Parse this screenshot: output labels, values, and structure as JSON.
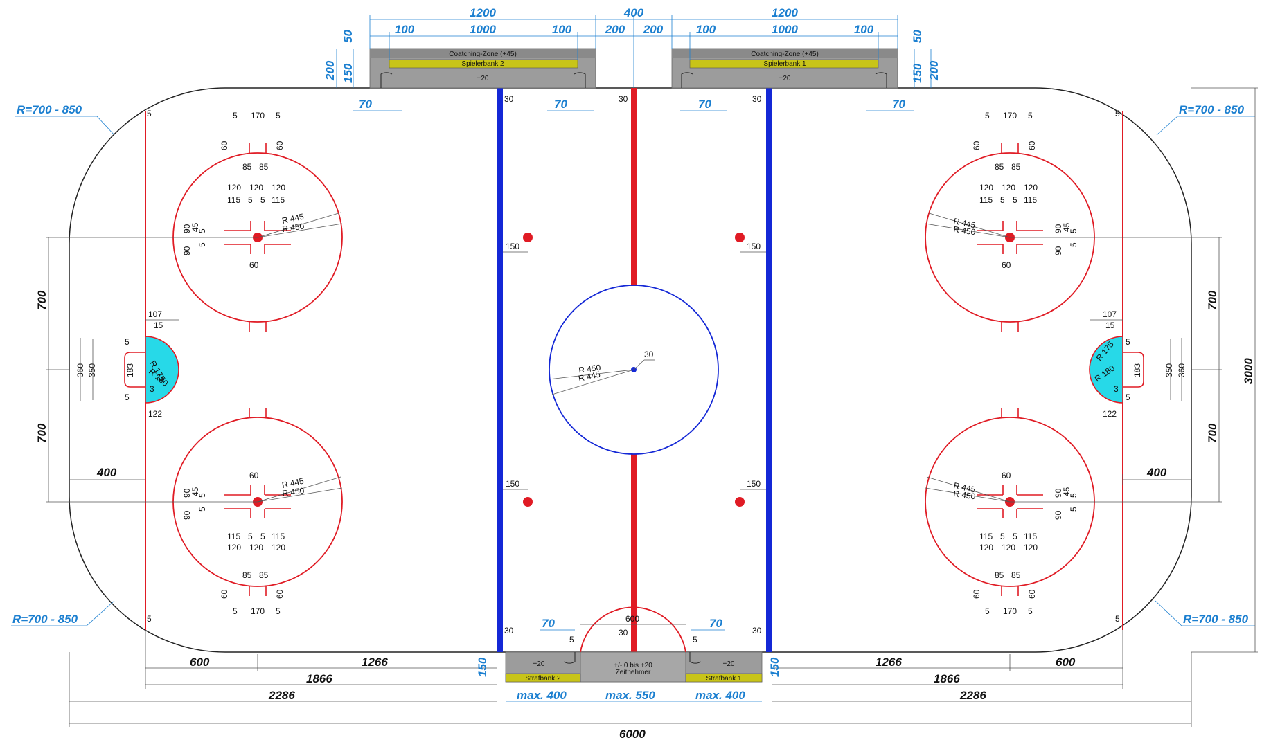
{
  "top": {
    "left_group": "1200",
    "center_group": "400",
    "right_group": "1200",
    "left_100a": "100",
    "left_1000": "1000",
    "left_100b": "100",
    "mid_200a": "200",
    "mid_200b": "200",
    "right_100a": "100",
    "right_1000": "1000",
    "right_100b": "100",
    "h50": "50",
    "h150": "150",
    "h200": "200",
    "d70": "70"
  },
  "benches_top": {
    "left": {
      "zone": "Coatching-Zone (+45)",
      "bank": "Spielerbank 2",
      "plus": "+20"
    },
    "right": {
      "zone": "Coatching-Zone (+45)",
      "bank": "Spielerbank 1",
      "plus": "+20"
    }
  },
  "benches_bottom": {
    "left": {
      "plus": "+20",
      "bank": "Strafbank 2"
    },
    "center": {
      "plus": "+/- 0 bis +20",
      "label": "Zeitnehmer"
    },
    "right": {
      "plus": "+20",
      "bank": "Strafbank 1"
    }
  },
  "corner_radius": "R=700 - 850",
  "side": {
    "d700": "700",
    "d400": "400",
    "total_width": "3000"
  },
  "bottom": {
    "d600": "600",
    "d1266": "1266",
    "d1866": "1866",
    "d2286": "2286",
    "d150": "150",
    "max400": "max. 400",
    "max550": "max. 550",
    "total_length": "6000",
    "d70": "70",
    "d600c": "600",
    "d30": "30"
  },
  "lines": {
    "d30": "30",
    "d5": "5",
    "d150": "150"
  },
  "faceoff": {
    "d5": "5",
    "d170": "170",
    "d60": "60",
    "d85": "85",
    "d120": "120",
    "d115": "115",
    "d90": "90",
    "d45": "45",
    "r445": "R 445",
    "r450": "R 450"
  },
  "goal": {
    "d107": "107",
    "d15": "15",
    "d5": "5",
    "d360": "360",
    "d350": "350",
    "d183": "183",
    "d3": "3",
    "d122": "122",
    "r175": "R 175",
    "r180": "R 180"
  },
  "center": {
    "r450": "R 450",
    "r445": "R 445",
    "d30": "30"
  },
  "colors": {
    "red": "#e01b24",
    "blue": "#1428d6",
    "crease": "#27d9e8",
    "bench": "#9c9c9c",
    "bank": "#c8c418",
    "dim_blue": "#1b7fd0"
  }
}
